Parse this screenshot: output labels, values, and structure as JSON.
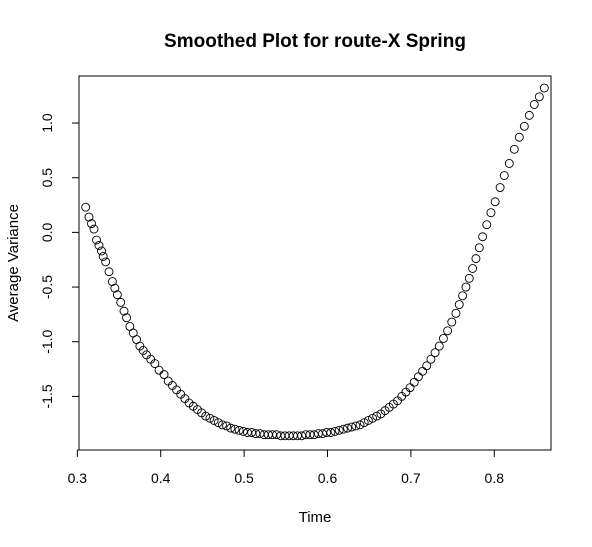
{
  "chart_data": {
    "type": "scatter",
    "title": "Smoothed Plot for route-X Spring",
    "xlabel": "Time",
    "ylabel": "Average Variance",
    "xlim": [
      0.302,
      0.868
    ],
    "ylim": [
      -1.99,
      1.43
    ],
    "xticks": [
      0.3,
      0.4,
      0.5,
      0.6,
      0.7,
      0.8
    ],
    "xtick_labels": [
      "0.3",
      "0.4",
      "0.5",
      "0.6",
      "0.7",
      "0.8"
    ],
    "yticks": [
      -1.5,
      -1.0,
      -0.5,
      0.0,
      0.5,
      1.0
    ],
    "ytick_labels": [
      "-1.5",
      "-1.0",
      "-0.5",
      "0.0",
      "0.5",
      "1.0"
    ],
    "grid": false,
    "marker": "open-circle",
    "points": [
      [
        0.31,
        0.23
      ],
      [
        0.314,
        0.14
      ],
      [
        0.317,
        0.08
      ],
      [
        0.32,
        0.03
      ],
      [
        0.323,
        -0.07
      ],
      [
        0.326,
        -0.12
      ],
      [
        0.329,
        -0.17
      ],
      [
        0.331,
        -0.22
      ],
      [
        0.334,
        -0.27
      ],
      [
        0.338,
        -0.36
      ],
      [
        0.342,
        -0.45
      ],
      [
        0.345,
        -0.51
      ],
      [
        0.348,
        -0.57
      ],
      [
        0.352,
        -0.64
      ],
      [
        0.356,
        -0.72
      ],
      [
        0.359,
        -0.78
      ],
      [
        0.363,
        -0.86
      ],
      [
        0.367,
        -0.92
      ],
      [
        0.371,
        -0.98
      ],
      [
        0.375,
        -1.04
      ],
      [
        0.379,
        -1.08
      ],
      [
        0.383,
        -1.12
      ],
      [
        0.388,
        -1.16
      ],
      [
        0.393,
        -1.2
      ],
      [
        0.398,
        -1.26
      ],
      [
        0.404,
        -1.3
      ],
      [
        0.409,
        -1.36
      ],
      [
        0.414,
        -1.4
      ],
      [
        0.419,
        -1.44
      ],
      [
        0.424,
        -1.48
      ],
      [
        0.429,
        -1.52
      ],
      [
        0.434,
        -1.56
      ],
      [
        0.439,
        -1.59
      ],
      [
        0.444,
        -1.62
      ],
      [
        0.449,
        -1.65
      ],
      [
        0.454,
        -1.68
      ],
      [
        0.459,
        -1.7
      ],
      [
        0.464,
        -1.72
      ],
      [
        0.469,
        -1.74
      ],
      [
        0.474,
        -1.76
      ],
      [
        0.479,
        -1.77
      ],
      [
        0.484,
        -1.79
      ],
      [
        0.489,
        -1.8
      ],
      [
        0.494,
        -1.81
      ],
      [
        0.499,
        -1.82
      ],
      [
        0.504,
        -1.83
      ],
      [
        0.509,
        -1.83
      ],
      [
        0.514,
        -1.84
      ],
      [
        0.519,
        -1.84
      ],
      [
        0.524,
        -1.85
      ],
      [
        0.529,
        -1.85
      ],
      [
        0.534,
        -1.85
      ],
      [
        0.539,
        -1.85
      ],
      [
        0.544,
        -1.86
      ],
      [
        0.549,
        -1.86
      ],
      [
        0.554,
        -1.86
      ],
      [
        0.559,
        -1.86
      ],
      [
        0.564,
        -1.86
      ],
      [
        0.569,
        -1.86
      ],
      [
        0.574,
        -1.85
      ],
      [
        0.579,
        -1.85
      ],
      [
        0.584,
        -1.85
      ],
      [
        0.589,
        -1.84
      ],
      [
        0.594,
        -1.84
      ],
      [
        0.599,
        -1.83
      ],
      [
        0.604,
        -1.83
      ],
      [
        0.609,
        -1.82
      ],
      [
        0.614,
        -1.81
      ],
      [
        0.619,
        -1.8
      ],
      [
        0.624,
        -1.79
      ],
      [
        0.629,
        -1.78
      ],
      [
        0.634,
        -1.77
      ],
      [
        0.639,
        -1.76
      ],
      [
        0.644,
        -1.74
      ],
      [
        0.649,
        -1.72
      ],
      [
        0.654,
        -1.7
      ],
      [
        0.659,
        -1.68
      ],
      [
        0.664,
        -1.66
      ],
      [
        0.669,
        -1.63
      ],
      [
        0.674,
        -1.6
      ],
      [
        0.679,
        -1.57
      ],
      [
        0.684,
        -1.54
      ],
      [
        0.689,
        -1.5
      ],
      [
        0.694,
        -1.46
      ],
      [
        0.699,
        -1.42
      ],
      [
        0.704,
        -1.37
      ],
      [
        0.709,
        -1.32
      ],
      [
        0.714,
        -1.27
      ],
      [
        0.719,
        -1.22
      ],
      [
        0.724,
        -1.16
      ],
      [
        0.729,
        -1.1
      ],
      [
        0.734,
        -1.04
      ],
      [
        0.739,
        -0.97
      ],
      [
        0.744,
        -0.9
      ],
      [
        0.749,
        -0.82
      ],
      [
        0.754,
        -0.74
      ],
      [
        0.758,
        -0.66
      ],
      [
        0.762,
        -0.58
      ],
      [
        0.766,
        -0.5
      ],
      [
        0.77,
        -0.42
      ],
      [
        0.774,
        -0.33
      ],
      [
        0.778,
        -0.24
      ],
      [
        0.782,
        -0.14
      ],
      [
        0.786,
        -0.04
      ],
      [
        0.791,
        0.07
      ],
      [
        0.796,
        0.18
      ],
      [
        0.801,
        0.28
      ],
      [
        0.807,
        0.41
      ],
      [
        0.812,
        0.52
      ],
      [
        0.818,
        0.63
      ],
      [
        0.824,
        0.76
      ],
      [
        0.83,
        0.87
      ],
      [
        0.836,
        0.97
      ],
      [
        0.842,
        1.07
      ],
      [
        0.848,
        1.17
      ],
      [
        0.854,
        1.24
      ],
      [
        0.86,
        1.32
      ]
    ]
  }
}
